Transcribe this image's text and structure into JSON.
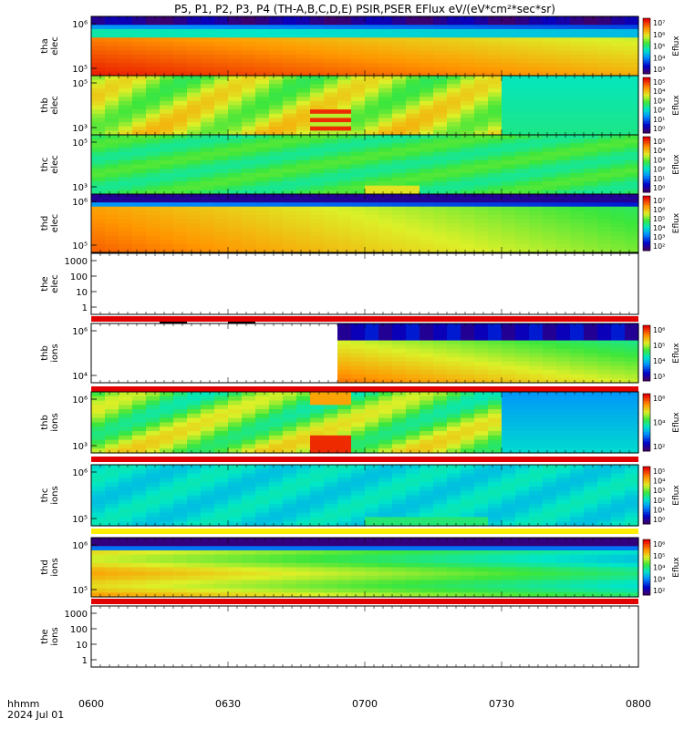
{
  "title": "P5, P1, P2, P3, P4 (TH-A,B,C,D,E) PSIR,PSER EFlux eV/(eV*cm²*sec*sr)",
  "footer": {
    "line1": "hhmm",
    "line2": "2024 Jul 01"
  },
  "chart_data": {
    "type": "heatmap",
    "x": {
      "ticks": [
        "0600",
        "0630",
        "0700",
        "0730",
        "0800"
      ]
    },
    "panels": [
      {
        "id": "tha-elec",
        "ylabel": [
          "tha",
          "elec"
        ],
        "yticks": [
          "10⁶",
          "10⁵"
        ],
        "colorbar": {
          "label": "Eflux",
          "ticks": [
            "10⁷",
            "10⁶",
            "10⁵",
            "10⁴",
            "10³"
          ]
        }
      },
      {
        "id": "thb-elec",
        "ylabel": [
          "thb",
          "elec"
        ],
        "yticks": [
          "10⁵",
          "10³"
        ],
        "colorbar": {
          "label": "Eflux",
          "ticks": [
            "10⁵",
            "10⁴",
            "10³",
            "10²",
            "10¹",
            "10⁰"
          ]
        }
      },
      {
        "id": "thc-elec",
        "ylabel": [
          "thc",
          "elec"
        ],
        "yticks": [
          "10⁵",
          "10³"
        ],
        "colorbar": {
          "label": "Eflux",
          "ticks": [
            "10⁵",
            "10⁴",
            "10³",
            "10²",
            "10¹",
            "10⁰"
          ]
        }
      },
      {
        "id": "thd-elec",
        "ylabel": [
          "thd",
          "elec"
        ],
        "yticks": [
          "10⁶",
          "10⁵"
        ],
        "colorbar": {
          "label": "Eflux",
          "ticks": [
            "10⁷",
            "10⁶",
            "10⁵",
            "10⁴",
            "10³",
            "10²"
          ]
        }
      },
      {
        "id": "the-elec",
        "ylabel": [
          "the",
          "elec"
        ],
        "yticks": [
          "1000",
          "100",
          "10",
          "1"
        ],
        "colorbar": null
      },
      {
        "id": "thb-ions",
        "ylabel": [
          "thb",
          "ions"
        ],
        "yticks": [
          "10⁶",
          "10⁴"
        ],
        "colorbar": {
          "label": "Eflux",
          "ticks": [
            "10⁶",
            "10⁵",
            "10⁴",
            "10³"
          ]
        }
      },
      {
        "id": "thb-ions-2",
        "ylabel": [
          "thb",
          "ions"
        ],
        "yticks": [
          "10⁶",
          "10³"
        ],
        "colorbar": {
          "label": "Eflux",
          "ticks": [
            "10⁶",
            "10⁴",
            "10²"
          ]
        }
      },
      {
        "id": "thc-ions",
        "ylabel": [
          "thc",
          "ions"
        ],
        "yticks": [
          "10⁶",
          "10⁵"
        ],
        "colorbar": {
          "label": "Eflux",
          "ticks": [
            "10⁵",
            "10⁴",
            "10³",
            "10²",
            "10¹",
            "10⁰"
          ]
        }
      },
      {
        "id": "thd-ions",
        "ylabel": [
          "thd",
          "ions"
        ],
        "yticks": [
          "10⁶",
          "10⁵"
        ],
        "colorbar": {
          "label": "Eflux",
          "ticks": [
            "10⁶",
            "10⁵",
            "10⁴",
            "10³",
            "10²"
          ]
        }
      },
      {
        "id": "the-ions",
        "ylabel": [
          "the",
          "ions"
        ],
        "yticks": [
          "1000",
          "100",
          "10",
          "1"
        ],
        "colorbar": null
      }
    ]
  }
}
